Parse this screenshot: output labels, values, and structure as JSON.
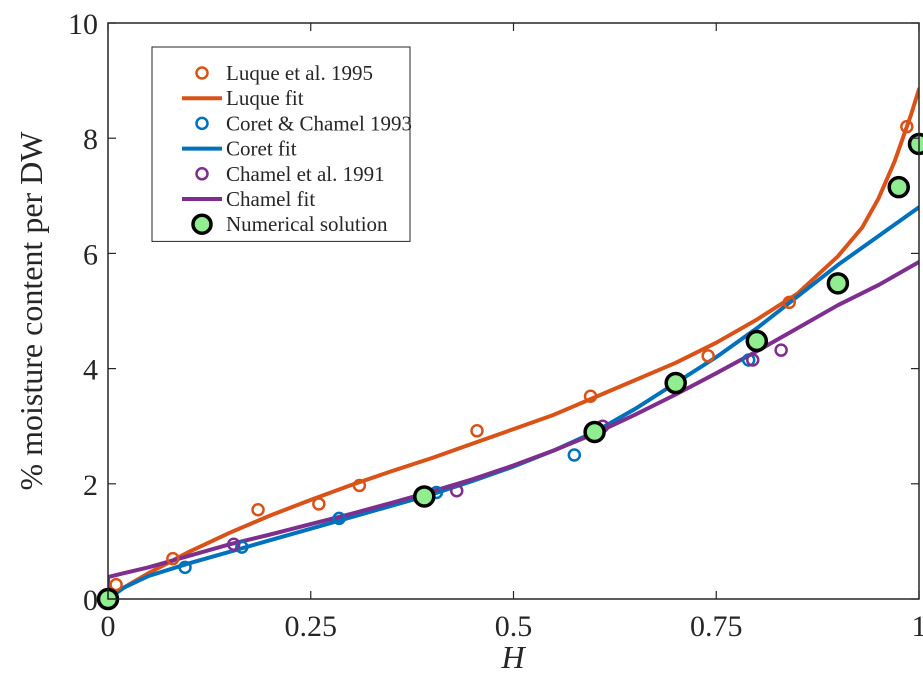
{
  "chart_data": {
    "type": "line",
    "title": "",
    "xlabel": "H",
    "ylabel": "% moisture content per DW",
    "xlim": [
      0,
      1
    ],
    "ylim": [
      0,
      10
    ],
    "xticks": [
      "0",
      "0.25",
      "0.5",
      "0.75",
      "1"
    ],
    "yticks": [
      "0",
      "2",
      "4",
      "6",
      "8",
      "10"
    ],
    "grid": false,
    "legend_position": "top-left",
    "colors": {
      "luque": "#D95319",
      "coret": "#0072BD",
      "chamel": "#7E2F8E",
      "numerical_fill": "#90EE90",
      "numerical_edge": "#000000",
      "axis": "#262626"
    },
    "series": [
      {
        "name": "Luque et al. 1995",
        "kind": "markers",
        "color_key": "luque",
        "x": [
          0.01,
          0.08,
          0.185,
          0.26,
          0.31,
          0.455,
          0.595,
          0.74,
          0.84,
          0.985
        ],
        "y": [
          0.25,
          0.7,
          1.55,
          1.65,
          1.97,
          2.92,
          3.52,
          4.22,
          5.15,
          8.2
        ]
      },
      {
        "name": "Luque fit",
        "kind": "line",
        "color_key": "luque",
        "x": [
          0,
          0.01,
          0.05,
          0.1,
          0.15,
          0.2,
          0.25,
          0.3,
          0.35,
          0.4,
          0.45,
          0.5,
          0.55,
          0.6,
          0.65,
          0.7,
          0.75,
          0.8,
          0.85,
          0.9,
          0.93,
          0.95,
          0.97,
          0.98,
          0.99,
          1.0
        ],
        "y": [
          0.0,
          0.12,
          0.45,
          0.82,
          1.15,
          1.45,
          1.72,
          1.98,
          2.22,
          2.45,
          2.7,
          2.95,
          3.2,
          3.5,
          3.8,
          4.1,
          4.45,
          4.85,
          5.3,
          5.95,
          6.45,
          6.95,
          7.6,
          8.0,
          8.4,
          8.85
        ]
      },
      {
        "name": "Coret & Chamel 1993",
        "kind": "markers",
        "color_key": "coret",
        "x": [
          0.095,
          0.165,
          0.285,
          0.405,
          0.575,
          0.79
        ],
        "y": [
          0.55,
          0.9,
          1.4,
          1.85,
          2.5,
          4.15
        ]
      },
      {
        "name": "Coret fit",
        "kind": "line",
        "color_key": "coret",
        "x": [
          0,
          0.02,
          0.05,
          0.1,
          0.15,
          0.2,
          0.25,
          0.3,
          0.35,
          0.4,
          0.45,
          0.5,
          0.55,
          0.6,
          0.65,
          0.7,
          0.75,
          0.8,
          0.85,
          0.9,
          0.95,
          1.0
        ],
        "y": [
          0.0,
          0.2,
          0.4,
          0.62,
          0.82,
          1.02,
          1.22,
          1.42,
          1.62,
          1.82,
          2.05,
          2.3,
          2.58,
          2.9,
          3.3,
          3.75,
          4.2,
          4.7,
          5.25,
          5.8,
          6.3,
          6.8
        ]
      },
      {
        "name": "Chamel et al. 1991",
        "kind": "markers",
        "color_key": "chamel",
        "x": [
          0.155,
          0.43,
          0.61,
          0.795,
          0.83
        ],
        "y": [
          0.95,
          1.88,
          3.0,
          4.15,
          4.32
        ]
      },
      {
        "name": "Chamel fit",
        "kind": "line",
        "color_key": "chamel",
        "x": [
          0,
          0.0,
          0.02,
          0.05,
          0.1,
          0.15,
          0.2,
          0.25,
          0.3,
          0.35,
          0.4,
          0.45,
          0.5,
          0.55,
          0.6,
          0.65,
          0.7,
          0.75,
          0.8,
          0.85,
          0.9,
          0.95,
          1.0
        ],
        "y": [
          0.1,
          0.38,
          0.45,
          0.55,
          0.75,
          0.95,
          1.12,
          1.3,
          1.48,
          1.67,
          1.87,
          2.08,
          2.32,
          2.58,
          2.87,
          3.2,
          3.55,
          3.92,
          4.3,
          4.7,
          5.1,
          5.45,
          5.85
        ]
      },
      {
        "name": "Numerical solution",
        "kind": "big-markers",
        "color_key": "numerical_fill",
        "x": [
          0.0,
          0.39,
          0.6,
          0.7,
          0.8,
          0.9,
          0.975,
          1.0
        ],
        "y": [
          0.0,
          1.78,
          2.9,
          3.75,
          4.48,
          5.48,
          7.15,
          7.9
        ]
      }
    ]
  }
}
